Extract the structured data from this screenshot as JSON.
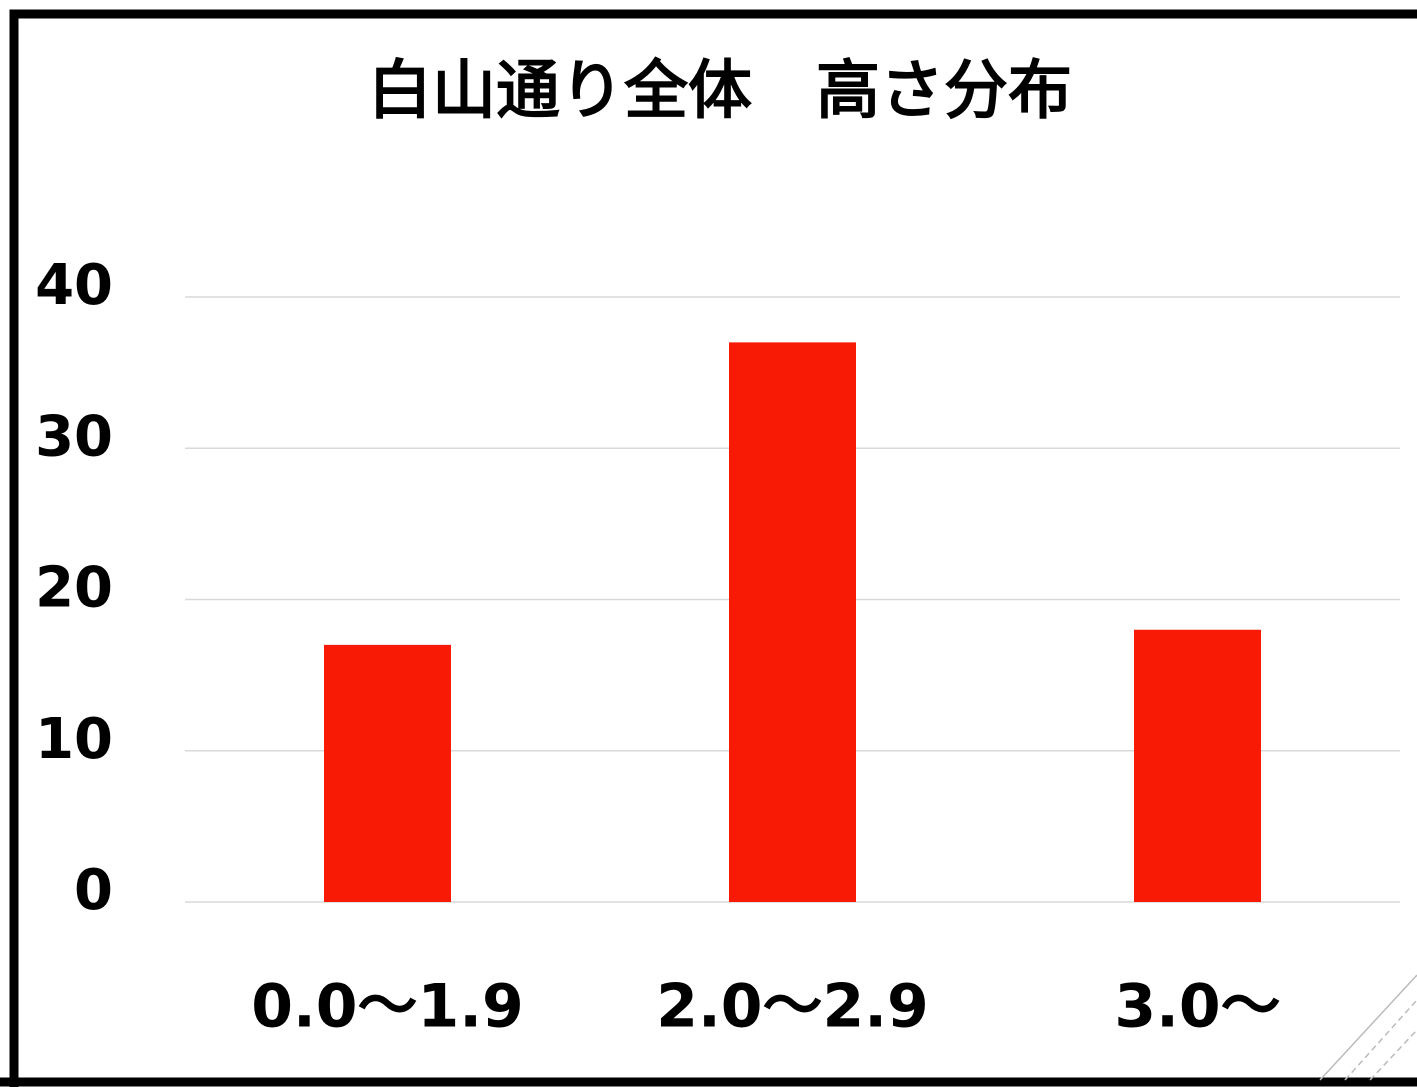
{
  "chart_data": {
    "type": "bar",
    "title": "白山通り全体　高さ分布",
    "categories": [
      "0.0～1.9",
      "2.0～2.9",
      "3.0～"
    ],
    "values": [
      17,
      37,
      18
    ],
    "color": "#f91a05",
    "ylim": [
      0,
      40
    ],
    "yticks": [
      0,
      10,
      20,
      30,
      40
    ],
    "grid": true
  }
}
